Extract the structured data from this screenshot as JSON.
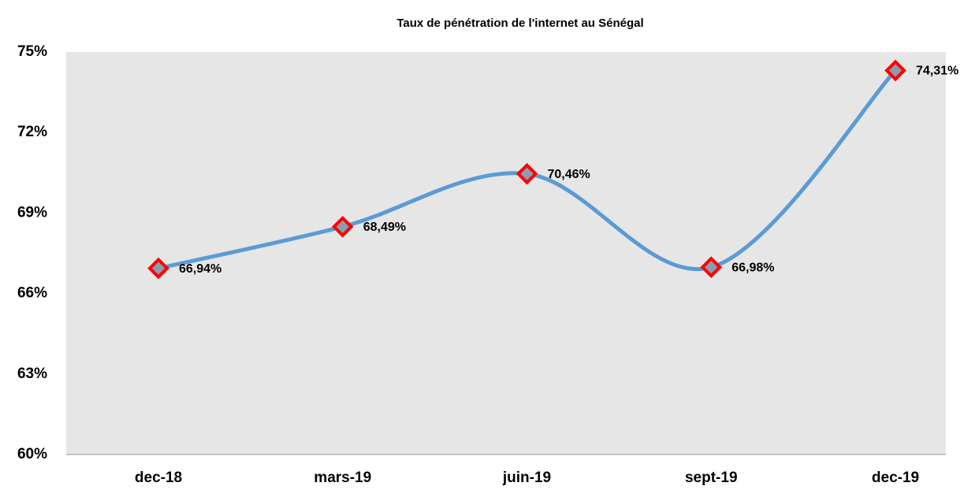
{
  "chart_data": {
    "type": "line",
    "title": "Taux de pénétration de l'internet au Sénégal",
    "categories": [
      "dec-18",
      "mars-19",
      "juin-19",
      "sept-19",
      "dec-19"
    ],
    "values": [
      66.94,
      68.49,
      70.46,
      66.98,
      74.31
    ],
    "value_labels": [
      "66,94%",
      "68,49%",
      "70,46%",
      "66,98%",
      "74,31%"
    ],
    "color": "#5b9bd5",
    "marker_fill": "#8c9bb0",
    "marker_edge": "#ff0000",
    "smooth": true,
    "ylim": [
      60,
      75
    ],
    "yticks": [
      {
        "value": 60,
        "label": "60%"
      },
      {
        "value": 63,
        "label": "63%"
      },
      {
        "value": 66,
        "label": "66%"
      },
      {
        "value": 69,
        "label": "69%"
      },
      {
        "value": 72,
        "label": "72%"
      },
      {
        "value": 75,
        "label": "75%"
      }
    ],
    "plot_background": "#e6e6e6"
  }
}
